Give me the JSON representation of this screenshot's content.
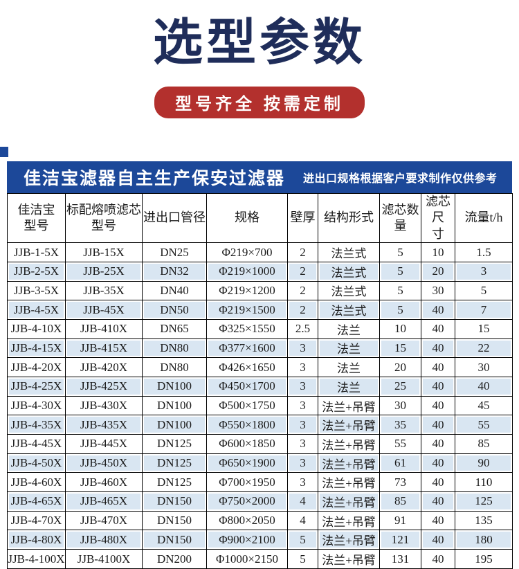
{
  "title": "选型参数",
  "badge_label": "型号齐全 按需定制",
  "table": {
    "banner_title": "佳洁宝滤器自主生产保安过滤器",
    "banner_note": "进出口规格根据客户要求制作仅供参考",
    "columns": [
      {
        "label": "佳洁宝型号",
        "lines": [
          "佳洁宝",
          "型号"
        ]
      },
      {
        "label": "标配熔喷滤芯型号",
        "lines": [
          "标配熔喷滤芯",
          "型号"
        ]
      },
      {
        "label": "进出口管径",
        "lines": [
          "进出口管径"
        ]
      },
      {
        "label": "规格",
        "lines": [
          "规格"
        ]
      },
      {
        "label": "壁厚",
        "lines": [
          "壁厚"
        ]
      },
      {
        "label": "结构形式",
        "lines": [
          "结构形式"
        ]
      },
      {
        "label": "滤芯数量",
        "lines": [
          "滤芯数",
          "量"
        ]
      },
      {
        "label": "滤芯尺寸",
        "lines": [
          "滤芯尺",
          "寸"
        ]
      },
      {
        "label": "流量t/h",
        "lines": [
          "流量t/h"
        ]
      }
    ],
    "rows": [
      [
        "JJB-1-5X",
        "JJB-15X",
        "DN25",
        "Φ219×700",
        "2",
        "法兰式",
        "5",
        "10",
        "1.5"
      ],
      [
        "JJB-2-5X",
        "JJB-25X",
        "DN32",
        "Φ219×1000",
        "2",
        "法兰式",
        "5",
        "20",
        "3"
      ],
      [
        "JJB-3-5X",
        "JJB-35X",
        "DN40",
        "Φ219×1200",
        "2",
        "法兰式",
        "5",
        "30",
        "5"
      ],
      [
        "JJB-4-5X",
        "JJB-45X",
        "DN50",
        "Φ219×1500",
        "2",
        "法兰式",
        "5",
        "40",
        "7"
      ],
      [
        "JJB-4-10X",
        "JJB-410X",
        "DN65",
        "Φ325×1550",
        "2.5",
        "法兰",
        "10",
        "40",
        "15"
      ],
      [
        "JJB-4-15X",
        "JJB-415X",
        "DN80",
        "Φ377×1600",
        "3",
        "法兰",
        "15",
        "40",
        "22"
      ],
      [
        "JJB-4-20X",
        "JJB-420X",
        "DN80",
        "Φ426×1650",
        "3",
        "法兰",
        "20",
        "40",
        "30"
      ],
      [
        "JJB-4-25X",
        "JJB-425X",
        "DN100",
        "Φ450×1700",
        "3",
        "法兰",
        "25",
        "40",
        "40"
      ],
      [
        "JJB-4-30X",
        "JJB-430X",
        "DN100",
        "Φ500×1750",
        "3",
        "法兰+吊臂",
        "30",
        "40",
        "45"
      ],
      [
        "JJB-4-35X",
        "JJB-435X",
        "DN100",
        "Φ550×1800",
        "3",
        "法兰+吊臂",
        "35",
        "40",
        "55"
      ],
      [
        "JJB-4-45X",
        "JJB-445X",
        "DN125",
        "Φ600×1850",
        "3",
        "法兰+吊臂",
        "55",
        "40",
        "85"
      ],
      [
        "JJB-4-50X",
        "JJB-450X",
        "DN125",
        "Φ650×1900",
        "3",
        "法兰+吊臂",
        "61",
        "40",
        "90"
      ],
      [
        "JJB-4-60X",
        "JJB-460X",
        "DN125",
        "Φ700×1950",
        "3",
        "法兰+吊臂",
        "73",
        "40",
        "110"
      ],
      [
        "JJB-4-65X",
        "JJB-465X",
        "DN150",
        "Φ750×2000",
        "4",
        "法兰+吊臂",
        "85",
        "40",
        "125"
      ],
      [
        "JJB-4-70X",
        "JJB-470X",
        "DN150",
        "Φ800×2050",
        "4",
        "法兰+吊臂",
        "91",
        "40",
        "135"
      ],
      [
        "JJB-4-80X",
        "JJB-480X",
        "DN150",
        "Φ900×2100",
        "5",
        "法兰+吊臂",
        "121",
        "40",
        "180"
      ],
      [
        "JJB-4-100X",
        "JJB-4100X",
        "DN200",
        "Φ1000×2150",
        "5",
        "法兰+吊臂",
        "131",
        "40",
        "195"
      ]
    ]
  },
  "colors": {
    "accent_navy": "#1f2d5a",
    "banner_blue": "#1c4899",
    "badge_red": "#b3302d",
    "row_alt_blue": "#d9e6f2"
  }
}
